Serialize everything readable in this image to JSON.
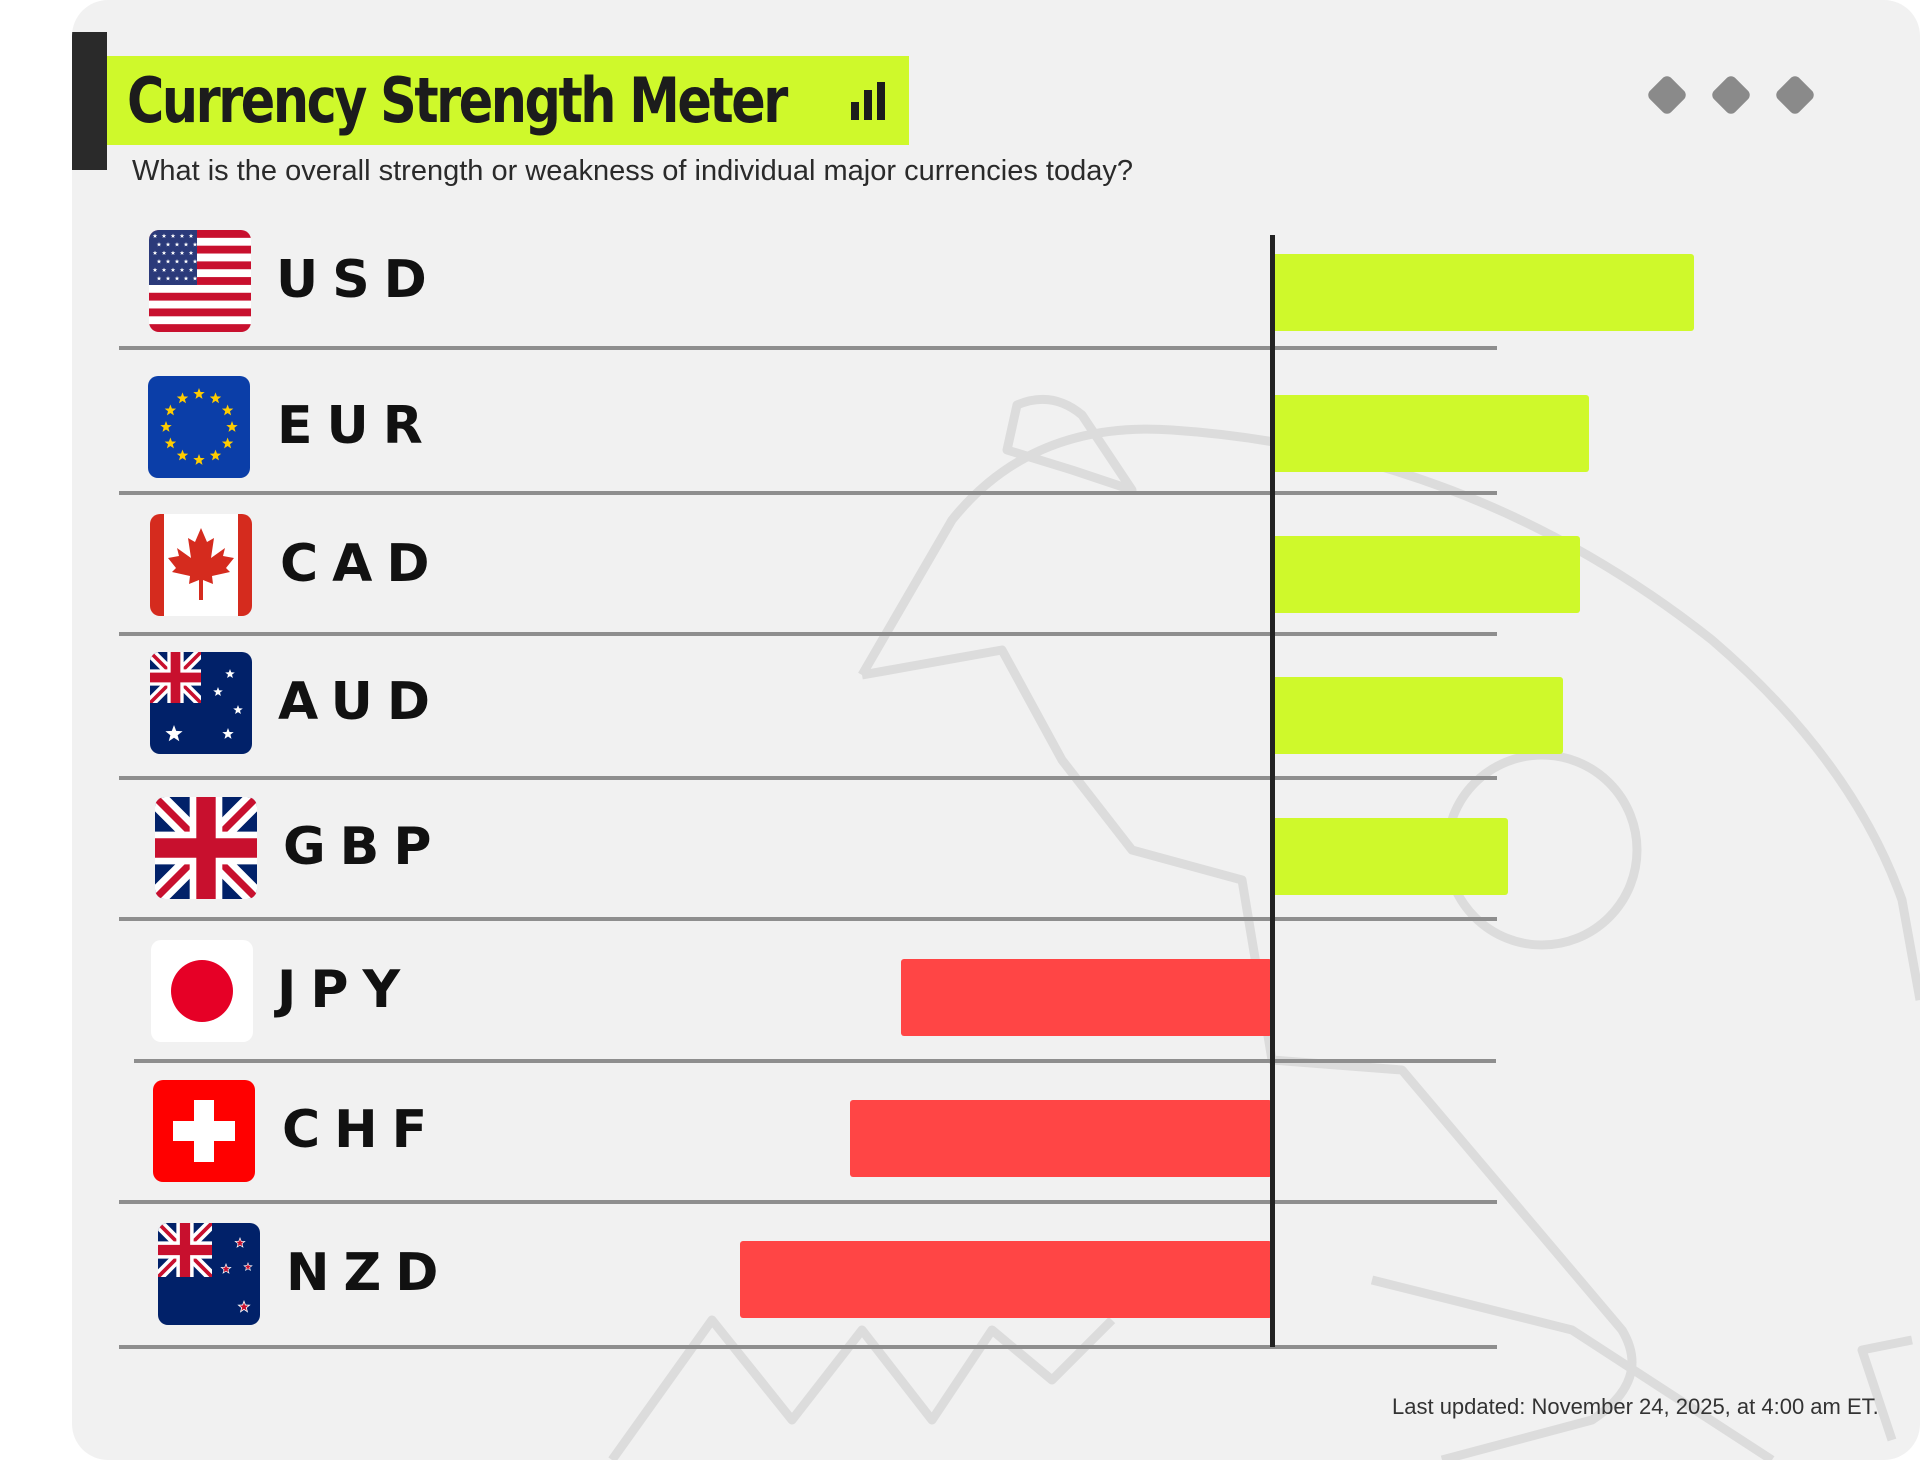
{
  "title": "Currency Strength Meter",
  "subtitle": "What is the overall strength or weakness of individual major currencies today?",
  "footer": "Last updated: November 24, 2025, at 4:00 am ET.",
  "colors": {
    "positive": "#cff92b",
    "negative": "#ff4545",
    "axis": "#222222",
    "accent": "#cff92b"
  },
  "icons": [
    "bar-chart-icon",
    "diamond-icon"
  ],
  "chart_data": {
    "type": "bar",
    "orientation": "horizontal",
    "categories": [
      "USD",
      "EUR",
      "CAD",
      "AUD",
      "GBP",
      "JPY",
      "CHF",
      "NZD"
    ],
    "values": [
      10,
      7.5,
      7.3,
      6.9,
      5.6,
      -8.8,
      -10,
      -12.6
    ],
    "value_axis": "relative strength (unlabeled)",
    "grid": false,
    "legend": "none"
  }
}
